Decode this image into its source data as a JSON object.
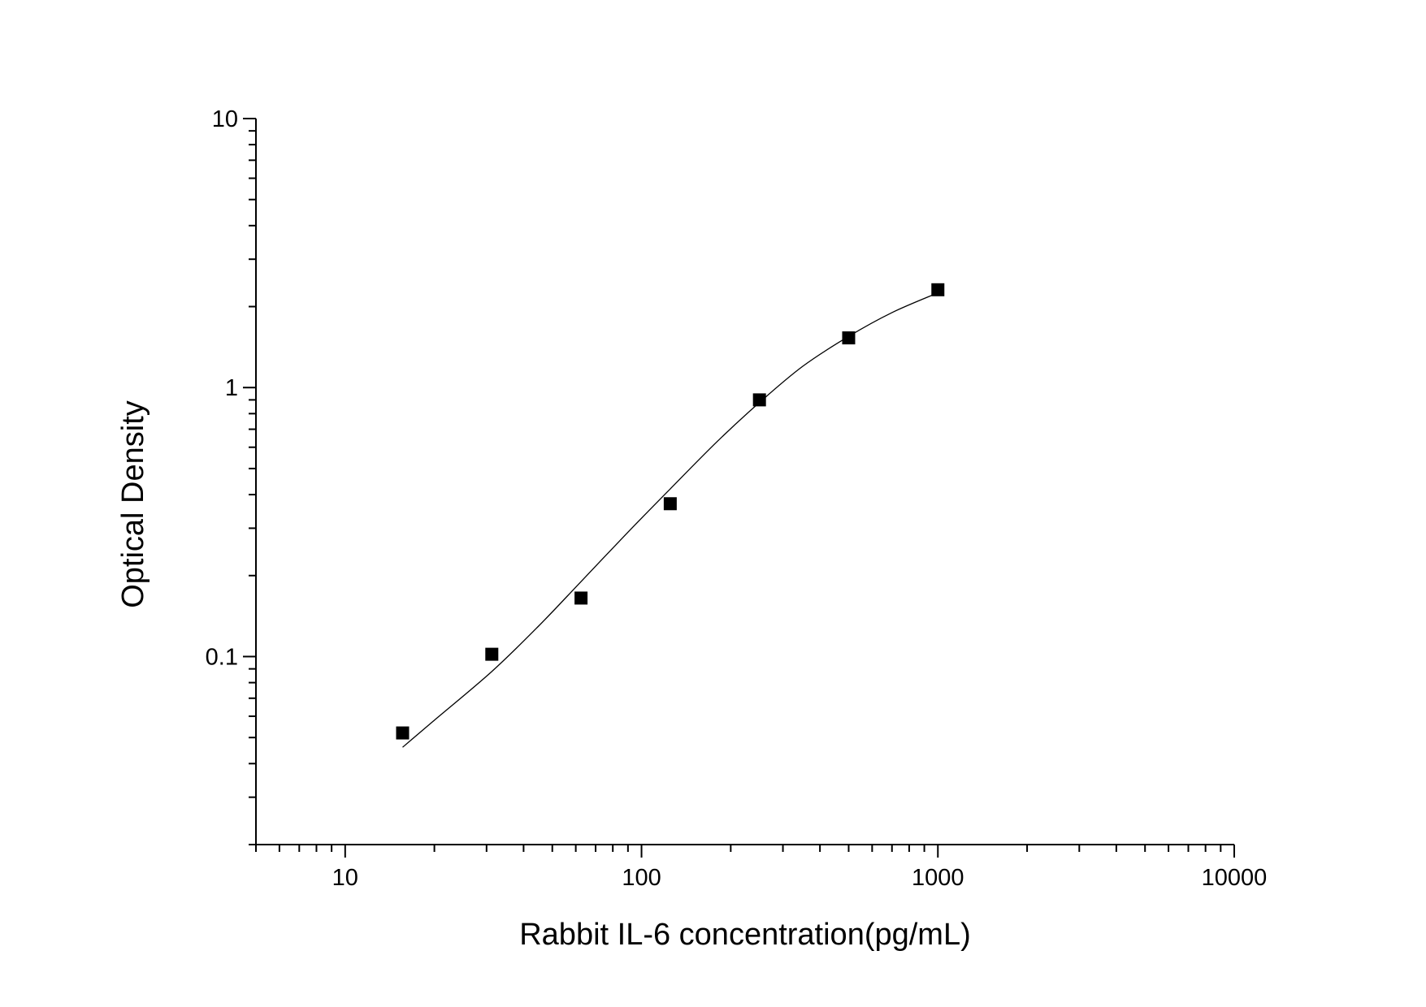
{
  "chart_data": {
    "type": "scatter",
    "x_label": "Rabbit IL-6 concentration(pg/mL)",
    "y_label": "Optical Density",
    "xscale": "log",
    "yscale": "log",
    "xlim": [
      5,
      10000
    ],
    "ylim": [
      0.02,
      10
    ],
    "xticks": [
      10,
      100,
      1000,
      10000
    ],
    "xminorticks": [
      5,
      6,
      7,
      8,
      9,
      20,
      30,
      40,
      50,
      60,
      70,
      80,
      90,
      200,
      300,
      400,
      500,
      600,
      700,
      800,
      900,
      2000,
      3000,
      4000,
      5000,
      6000,
      7000,
      8000,
      9000
    ],
    "yticks": [
      0.1,
      1,
      10
    ],
    "yminorticks": [
      0.02,
      0.03,
      0.04,
      0.05,
      0.06,
      0.07,
      0.08,
      0.09,
      0.2,
      0.3,
      0.4,
      0.5,
      0.6,
      0.7,
      0.8,
      0.9,
      2,
      3,
      4,
      5,
      6,
      7,
      8,
      9
    ],
    "series": [
      {
        "marker": "square",
        "color": "#000000",
        "x": [
          15.625,
          31.25,
          62.5,
          125,
          250,
          500,
          1000
        ],
        "values": [
          0.052,
          0.102,
          0.165,
          0.37,
          0.9,
          1.53,
          2.31
        ]
      },
      {
        "marker": "line",
        "color": "#000000",
        "x": [
          15.625,
          20,
          31.25,
          45,
          62.5,
          90,
          125,
          180,
          250,
          350,
          500,
          700,
          1000
        ],
        "values": [
          0.046,
          0.058,
          0.088,
          0.13,
          0.19,
          0.29,
          0.42,
          0.63,
          0.88,
          1.2,
          1.55,
          1.9,
          2.25
        ]
      }
    ]
  }
}
